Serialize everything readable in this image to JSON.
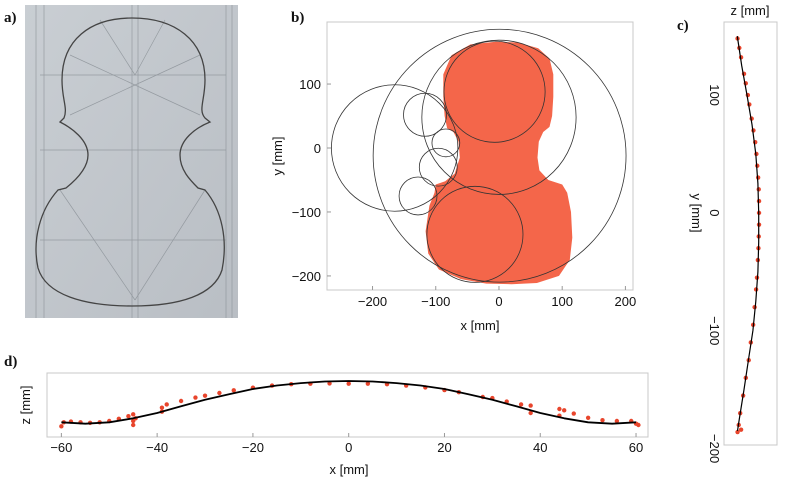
{
  "panels": {
    "a": {
      "label": "a)"
    },
    "b": {
      "label": "b)"
    },
    "c": {
      "label": "c)"
    },
    "d": {
      "label": "d)"
    }
  },
  "colors": {
    "fill": "#f4664a",
    "points": "#e8452c",
    "curve": "#000000",
    "circle": "#333333",
    "frame": "#c8c8c8"
  },
  "chart_data": [
    {
      "id": "b",
      "type": "scatter",
      "xlabel": "x [mm]",
      "ylabel": "y [mm]",
      "xlim": [
        -272,
        212
      ],
      "ylim": [
        -222,
        197
      ],
      "xticks": [
        -200,
        -100,
        0,
        100,
        200
      ],
      "yticks": [
        -200,
        -100,
        0,
        100
      ],
      "outline": [
        [
          -5,
          166
        ],
        [
          30,
          165
        ],
        [
          62,
          156
        ],
        [
          80,
          140
        ],
        [
          86,
          115
        ],
        [
          86,
          80
        ],
        [
          84,
          50
        ],
        [
          80,
          33
        ],
        [
          70,
          25
        ],
        [
          63,
          10
        ],
        [
          61,
          -15
        ],
        [
          64,
          -35
        ],
        [
          78,
          -50
        ],
        [
          100,
          -57
        ],
        [
          108,
          -70
        ],
        [
          114,
          -100
        ],
        [
          116,
          -140
        ],
        [
          112,
          -175
        ],
        [
          95,
          -200
        ],
        [
          60,
          -211
        ],
        [
          20,
          -213
        ],
        [
          -20,
          -212
        ],
        [
          -60,
          -205
        ],
        [
          -95,
          -190
        ],
        [
          -112,
          -165
        ],
        [
          -116,
          -130
        ],
        [
          -110,
          -90
        ],
        [
          -102,
          -70
        ],
        [
          -100,
          -57
        ],
        [
          -85,
          -52
        ],
        [
          -70,
          -40
        ],
        [
          -62,
          -15
        ],
        [
          -64,
          10
        ],
        [
          -72,
          25
        ],
        [
          -82,
          31
        ],
        [
          -86,
          50
        ],
        [
          -88,
          80
        ],
        [
          -88,
          115
        ],
        [
          -75,
          145
        ],
        [
          -45,
          162
        ]
      ],
      "circles": [
        [
          1,
          -12,
          200
        ],
        [
          -165,
          0,
          100
        ],
        [
          0,
          48,
          122
        ],
        [
          -7,
          88,
          80
        ],
        [
          -38,
          -135,
          76
        ],
        [
          -117,
          52,
          34
        ],
        [
          -84,
          8,
          22
        ],
        [
          -96,
          -30,
          30
        ],
        [
          -128,
          -75,
          30
        ]
      ]
    },
    {
      "id": "c",
      "type": "line",
      "xlabel": "z [mm]",
      "ylabel": "y [mm]",
      "xlim": [
        -4,
        14
      ],
      "ylim": [
        -197,
        162
      ],
      "yticks": [
        -200,
        -100,
        0,
        100
      ],
      "curve": [
        [
          150,
          0.5
        ],
        [
          125,
          2
        ],
        [
          100,
          3.8
        ],
        [
          75,
          5.5
        ],
        [
          50,
          6.8
        ],
        [
          25,
          7.5
        ],
        [
          0,
          7.8
        ],
        [
          -25,
          7.8
        ],
        [
          -50,
          7.5
        ],
        [
          -75,
          6.8
        ],
        [
          -100,
          5.8
        ],
        [
          -125,
          4.3
        ],
        [
          -150,
          2.8
        ],
        [
          -175,
          1.2
        ],
        [
          -185,
          0.6
        ]
      ],
      "points": [
        [
          148,
          0.6
        ],
        [
          140,
          1.2
        ],
        [
          132,
          1.8
        ],
        [
          118,
          2.8
        ],
        [
          110,
          3.4
        ],
        [
          100,
          4.1
        ],
        [
          92,
          4.6
        ],
        [
          80,
          5.4
        ],
        [
          70,
          6
        ],
        [
          60,
          6.6
        ],
        [
          50,
          7
        ],
        [
          40,
          7.3
        ],
        [
          30,
          7.6
        ],
        [
          20,
          7.8
        ],
        [
          10,
          7.9
        ],
        [
          0,
          7.9
        ],
        [
          -10,
          7.9
        ],
        [
          -20,
          7.8
        ],
        [
          -30,
          7.7
        ],
        [
          -40,
          7.5
        ],
        [
          -55,
          7.2
        ],
        [
          -65,
          6.9
        ],
        [
          -80,
          6.4
        ],
        [
          -95,
          5.9
        ],
        [
          -110,
          5.1
        ],
        [
          -125,
          4.4
        ],
        [
          -140,
          3.4
        ],
        [
          -155,
          2.5
        ],
        [
          -170,
          1.5
        ],
        [
          -180,
          1
        ],
        [
          -184,
          1.8
        ],
        [
          -186,
          0.6
        ]
      ]
    },
    {
      "id": "d",
      "type": "line",
      "xlabel": "x [mm]",
      "ylabel": "z [mm]",
      "xlim": [
        -63,
        62.5
      ],
      "ylim": [
        -5,
        19
      ],
      "xticks": [
        -60,
        -40,
        -20,
        0,
        20,
        40,
        60
      ],
      "curve": [
        [
          -60,
          0.5
        ],
        [
          -55,
          0
        ],
        [
          -50,
          0.5
        ],
        [
          -45,
          2
        ],
        [
          -40,
          4
        ],
        [
          -35,
          6.5
        ],
        [
          -30,
          9
        ],
        [
          -25,
          11
        ],
        [
          -20,
          13
        ],
        [
          -15,
          14.3
        ],
        [
          -10,
          15.2
        ],
        [
          -5,
          15.8
        ],
        [
          0,
          16
        ],
        [
          5,
          15.8
        ],
        [
          10,
          15.2
        ],
        [
          15,
          14.3
        ],
        [
          20,
          13
        ],
        [
          25,
          11
        ],
        [
          30,
          9
        ],
        [
          35,
          6.5
        ],
        [
          40,
          4
        ],
        [
          45,
          2
        ],
        [
          50,
          0.5
        ],
        [
          55,
          0
        ],
        [
          60,
          0.5
        ]
      ],
      "points": [
        [
          -60,
          -1
        ],
        [
          -59.5,
          0.5
        ],
        [
          -58,
          0.8
        ],
        [
          -56,
          0.5
        ],
        [
          -54,
          0.3
        ],
        [
          -52,
          0.5
        ],
        [
          -50,
          1
        ],
        [
          -48,
          1.8
        ],
        [
          -46,
          2.8
        ],
        [
          -45,
          3.5
        ],
        [
          -45,
          1
        ],
        [
          -45,
          -0.5
        ],
        [
          -44.5,
          2
        ],
        [
          -39,
          4.5
        ],
        [
          -39,
          6
        ],
        [
          -38,
          7.2
        ],
        [
          -35,
          8.5
        ],
        [
          -32,
          9.8
        ],
        [
          -30,
          10.5
        ],
        [
          -27,
          11.5
        ],
        [
          -24,
          12.5
        ],
        [
          -20,
          13.5
        ],
        [
          -16,
          14.3
        ],
        [
          -12,
          14.8
        ],
        [
          -8,
          15
        ],
        [
          -4,
          15.1
        ],
        [
          0,
          15
        ],
        [
          4,
          15
        ],
        [
          8,
          14.8
        ],
        [
          12,
          14.3
        ],
        [
          16,
          13.6
        ],
        [
          20,
          12.6
        ],
        [
          23,
          11.8
        ],
        [
          28,
          10
        ],
        [
          30,
          9.6
        ],
        [
          33,
          8.3
        ],
        [
          36,
          7.2
        ],
        [
          38,
          6.8
        ],
        [
          38,
          4
        ],
        [
          44,
          5.5
        ],
        [
          44,
          3
        ],
        [
          45,
          5
        ],
        [
          47,
          3.8
        ],
        [
          50,
          2.2
        ],
        [
          53,
          1.3
        ],
        [
          56,
          1
        ],
        [
          59,
          1
        ],
        [
          60,
          0
        ],
        [
          60.5,
          -0.5
        ]
      ]
    }
  ]
}
